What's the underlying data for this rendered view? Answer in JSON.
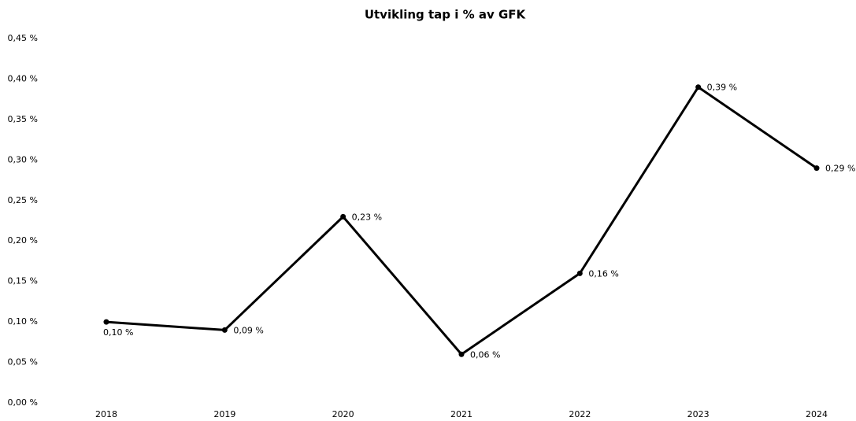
{
  "chart_data": {
    "type": "line",
    "title": "Utvikling tap i % av GFK",
    "categories": [
      "2018",
      "2019",
      "2020",
      "2021",
      "2022",
      "2023",
      "2024"
    ],
    "series": [
      {
        "color": "#000000",
        "values": [
          0.1,
          0.09,
          0.23,
          0.06,
          0.16,
          0.39,
          0.29
        ],
        "value_labels": [
          "0,10 %",
          "0,09 %",
          "0,23 %",
          "0,06 %",
          "0,16 %",
          "0,39 %",
          "0,29 %"
        ]
      }
    ],
    "ylim": [
      0,
      0.45
    ],
    "yticks": [
      {
        "value": 0,
        "label": "0,00 %"
      },
      {
        "value": 0.05,
        "label": "0,05 %"
      },
      {
        "value": 0.1,
        "label": "0,10 %"
      },
      {
        "value": 0.15,
        "label": "0,15 %"
      },
      {
        "value": 0.2,
        "label": "0,20 %"
      },
      {
        "value": 0.25,
        "label": "0,25 %"
      },
      {
        "value": 0.3,
        "label": "0,30 %"
      },
      {
        "value": 0.35,
        "label": "0,35 %"
      },
      {
        "value": 0.4,
        "label": "0,40 %"
      },
      {
        "value": 0.45,
        "label": "0,45 %"
      }
    ],
    "grid": false
  }
}
